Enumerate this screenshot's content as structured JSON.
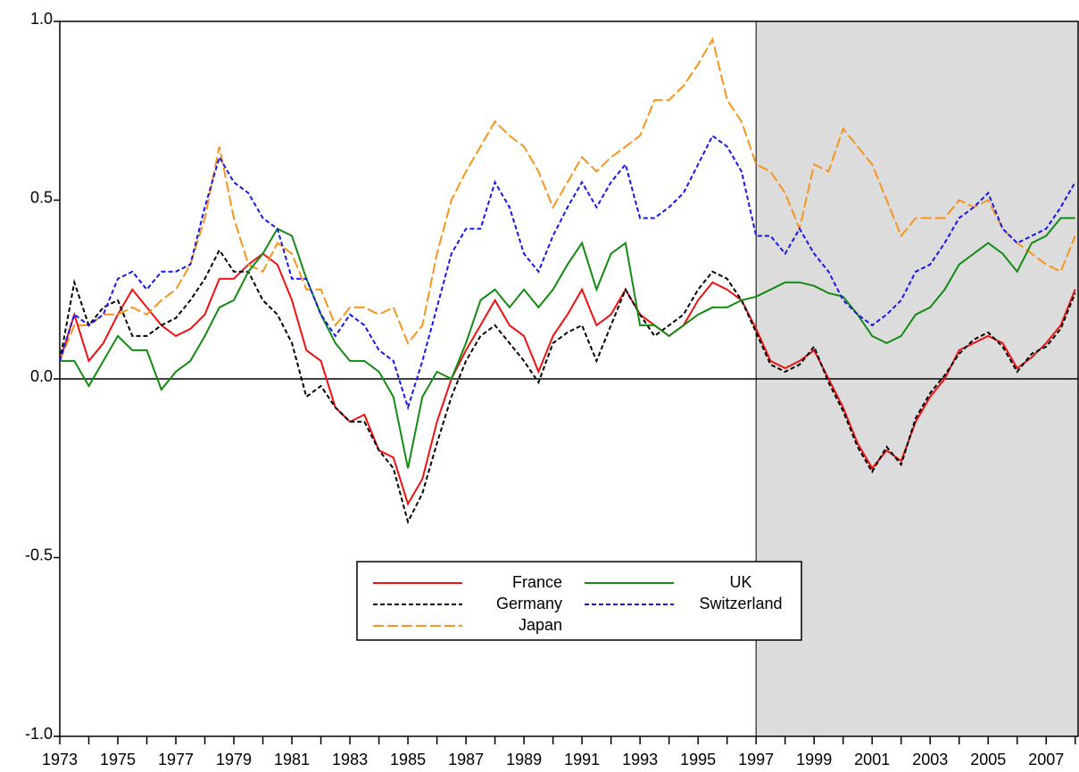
{
  "chart_data": {
    "type": "line",
    "x": [
      1973.0,
      1973.5,
      1974.0,
      1974.5,
      1975.0,
      1975.5,
      1976.0,
      1976.5,
      1977.0,
      1977.5,
      1978.0,
      1978.5,
      1979.0,
      1979.5,
      1980.0,
      1980.5,
      1981.0,
      1981.5,
      1982.0,
      1982.5,
      1983.0,
      1983.5,
      1984.0,
      1984.5,
      1985.0,
      1985.5,
      1986.0,
      1986.5,
      1987.0,
      1987.5,
      1988.0,
      1988.5,
      1989.0,
      1989.5,
      1990.0,
      1990.5,
      1991.0,
      1991.5,
      1992.0,
      1992.5,
      1993.0,
      1993.5,
      1994.0,
      1994.5,
      1995.0,
      1995.5,
      1996.0,
      1996.5,
      1997.0,
      1997.5,
      1998.0,
      1998.5,
      1999.0,
      1999.5,
      2000.0,
      2000.5,
      2001.0,
      2001.5,
      2002.0,
      2002.5,
      2003.0,
      2003.5,
      2004.0,
      2004.5,
      2005.0,
      2005.5,
      2006.0,
      2006.5,
      2007.0,
      2007.5,
      2008.0
    ],
    "series": [
      {
        "name": "France",
        "color": "#ee1111",
        "dash": "none",
        "values": [
          0.05,
          0.18,
          0.05,
          0.1,
          0.18,
          0.25,
          0.2,
          0.15,
          0.12,
          0.14,
          0.18,
          0.28,
          0.28,
          0.32,
          0.35,
          0.32,
          0.22,
          0.08,
          0.05,
          -0.08,
          -0.12,
          -0.1,
          -0.2,
          -0.22,
          -0.35,
          -0.28,
          -0.12,
          0.0,
          0.08,
          0.15,
          0.22,
          0.15,
          0.12,
          0.02,
          0.12,
          0.18,
          0.25,
          0.15,
          0.18,
          0.25,
          0.18,
          0.15,
          0.12,
          0.15,
          0.22,
          0.27,
          0.25,
          0.22,
          0.14,
          0.05,
          0.03,
          0.05,
          0.08,
          0.0,
          -0.08,
          -0.18,
          -0.25,
          -0.2,
          -0.23,
          -0.12,
          -0.05,
          0.0,
          0.08,
          0.1,
          0.12,
          0.1,
          0.03,
          0.06,
          0.1,
          0.15,
          0.25
        ]
      },
      {
        "name": "Germany",
        "color": "#000000",
        "dash": "5,3",
        "values": [
          0.05,
          0.27,
          0.15,
          0.2,
          0.22,
          0.12,
          0.12,
          0.15,
          0.17,
          0.22,
          0.28,
          0.36,
          0.3,
          0.3,
          0.22,
          0.18,
          0.1,
          -0.05,
          -0.02,
          -0.08,
          -0.12,
          -0.12,
          -0.2,
          -0.25,
          -0.4,
          -0.32,
          -0.18,
          -0.05,
          0.05,
          0.12,
          0.15,
          0.1,
          0.05,
          -0.01,
          0.1,
          0.13,
          0.15,
          0.05,
          0.15,
          0.25,
          0.18,
          0.12,
          0.15,
          0.18,
          0.25,
          0.3,
          0.28,
          0.22,
          0.13,
          0.04,
          0.02,
          0.04,
          0.09,
          -0.01,
          -0.09,
          -0.19,
          -0.26,
          -0.19,
          -0.24,
          -0.11,
          -0.04,
          0.01,
          0.07,
          0.11,
          0.13,
          0.09,
          0.02,
          0.07,
          0.09,
          0.14,
          0.24
        ]
      },
      {
        "name": "Japan",
        "color": "#f7941d",
        "dash": "12,4",
        "values": [
          0.05,
          0.15,
          0.15,
          0.18,
          0.18,
          0.2,
          0.18,
          0.22,
          0.25,
          0.32,
          0.45,
          0.65,
          0.45,
          0.32,
          0.3,
          0.38,
          0.35,
          0.25,
          0.25,
          0.15,
          0.2,
          0.2,
          0.18,
          0.2,
          0.1,
          0.15,
          0.35,
          0.5,
          0.58,
          0.65,
          0.72,
          0.68,
          0.65,
          0.58,
          0.48,
          0.55,
          0.62,
          0.58,
          0.62,
          0.65,
          0.68,
          0.78,
          0.78,
          0.82,
          0.88,
          0.95,
          0.78,
          0.72,
          0.6,
          0.58,
          0.52,
          0.42,
          0.6,
          0.58,
          0.7,
          0.65,
          0.6,
          0.5,
          0.4,
          0.45,
          0.45,
          0.45,
          0.5,
          0.48,
          0.5,
          0.42,
          0.38,
          0.35,
          0.32,
          0.3,
          0.4
        ]
      },
      {
        "name": "UK",
        "color": "#138a13",
        "dash": "none",
        "values": [
          0.05,
          0.05,
          -0.02,
          0.05,
          0.12,
          0.08,
          0.08,
          -0.03,
          0.02,
          0.05,
          0.12,
          0.2,
          0.22,
          0.3,
          0.35,
          0.42,
          0.4,
          0.28,
          0.18,
          0.1,
          0.05,
          0.05,
          0.02,
          -0.05,
          -0.25,
          -0.05,
          0.02,
          0.0,
          0.1,
          0.22,
          0.25,
          0.2,
          0.25,
          0.2,
          0.25,
          0.32,
          0.38,
          0.25,
          0.35,
          0.38,
          0.15,
          0.15,
          0.12,
          0.15,
          0.18,
          0.2,
          0.2,
          0.22,
          0.23,
          0.25,
          0.27,
          0.27,
          0.26,
          0.24,
          0.23,
          0.18,
          0.12,
          0.1,
          0.12,
          0.18,
          0.2,
          0.25,
          0.32,
          0.35,
          0.38,
          0.35,
          0.3,
          0.38,
          0.4,
          0.45,
          0.45
        ]
      },
      {
        "name": "Switzerland",
        "color": "#1515ee",
        "dash": "5,3",
        "values": [
          0.05,
          0.18,
          0.15,
          0.18,
          0.28,
          0.3,
          0.25,
          0.3,
          0.3,
          0.32,
          0.48,
          0.62,
          0.55,
          0.52,
          0.45,
          0.42,
          0.28,
          0.28,
          0.18,
          0.12,
          0.18,
          0.15,
          0.08,
          0.05,
          -0.08,
          0.05,
          0.2,
          0.35,
          0.42,
          0.42,
          0.55,
          0.48,
          0.35,
          0.3,
          0.4,
          0.48,
          0.55,
          0.48,
          0.55,
          0.6,
          0.45,
          0.45,
          0.48,
          0.52,
          0.6,
          0.68,
          0.65,
          0.58,
          0.4,
          0.4,
          0.35,
          0.42,
          0.35,
          0.3,
          0.22,
          0.18,
          0.15,
          0.18,
          0.22,
          0.3,
          0.32,
          0.38,
          0.45,
          0.48,
          0.52,
          0.42,
          0.38,
          0.4,
          0.42,
          0.48,
          0.55
        ]
      }
    ],
    "xlim": [
      1973,
      2008.1
    ],
    "xticks": [
      1973,
      1975,
      1977,
      1979,
      1981,
      1983,
      1985,
      1987,
      1989,
      1991,
      1993,
      1995,
      1997,
      1999,
      2001,
      2003,
      2005,
      2007
    ],
    "ylim": [
      -1,
      1
    ],
    "yticks": [
      {
        "value": 1,
        "label": "1.0"
      },
      {
        "value": 0.5,
        "label": "0.5"
      },
      {
        "value": 0,
        "label": "0.0"
      },
      {
        "value": -0.5,
        "label": "-0.5"
      },
      {
        "value": -1,
        "label": "-1.0"
      }
    ],
    "shade_from": 1997,
    "legend": "bottom-center"
  }
}
